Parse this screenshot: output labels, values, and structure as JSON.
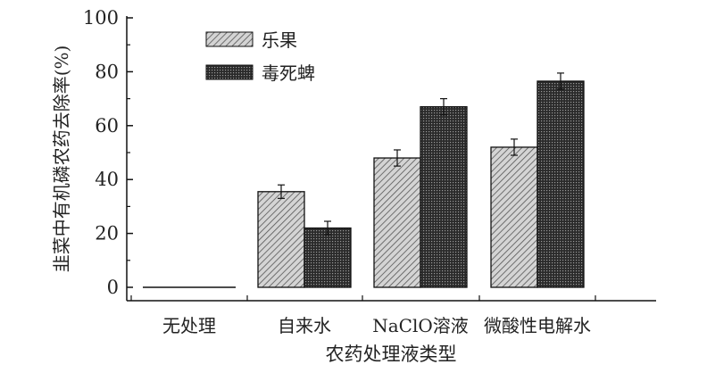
{
  "chart_data": {
    "type": "bar",
    "categories": [
      "无处理",
      "自来水",
      "NaClO溶液",
      "微酸性电解水"
    ],
    "series": [
      {
        "name": "乐果",
        "values": [
          0,
          35.5,
          48,
          52
        ],
        "errors": [
          0,
          2.5,
          3,
          3
        ],
        "color": "#b5b5b5",
        "pattern": "diagonal-hatch"
      },
      {
        "name": "毒死蜱",
        "values": [
          0,
          22,
          67,
          76.5
        ],
        "errors": [
          0,
          2.5,
          3,
          3
        ],
        "color": "#3a3a3a",
        "pattern": "dense-dots"
      }
    ],
    "xlabel": "农药处理液类型",
    "ylabel": "韭菜中有机磷农药去除率(%)",
    "ylim": [
      -5,
      100
    ],
    "yticks": [
      0,
      20,
      40,
      60,
      80,
      100
    ],
    "legend": "top-left",
    "grid": false
  }
}
